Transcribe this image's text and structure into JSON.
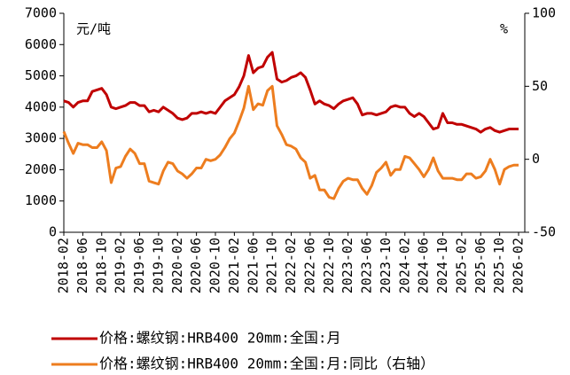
{
  "chart_data": {
    "type": "line",
    "y_label": "元/吨",
    "y2_label": "%",
    "categories": [
      "2018-02",
      null,
      null,
      null,
      "2018-06",
      null,
      null,
      null,
      "2018-10",
      null,
      null,
      null,
      "2019-02",
      null,
      null,
      null,
      "2019-06",
      null,
      null,
      null,
      "2019-10",
      null,
      null,
      null,
      "2020-02",
      null,
      null,
      null,
      "2020-06",
      null,
      null,
      null,
      "2020-10",
      null,
      null,
      null,
      "2021-02",
      null,
      null,
      null,
      "2021-06",
      null,
      null,
      null,
      "2021-10",
      null,
      null,
      null,
      "2022-02",
      null,
      null,
      null,
      "2022-06",
      null,
      null,
      null,
      "2022-10",
      null,
      null,
      null,
      "2023-02",
      null,
      null,
      null,
      "2023-06",
      null,
      null,
      null,
      "2023-10",
      null,
      null,
      null,
      "2024-02",
      null,
      null,
      null,
      "2024-06",
      null,
      null,
      null,
      "2024-10",
      null,
      null,
      null,
      "2025-02",
      null,
      null,
      null,
      "2025-06",
      null,
      null,
      null,
      "2025-10",
      null,
      null,
      null,
      "2026-02"
    ],
    "series": [
      {
        "name": "价格:螺纹钢:HRB400 20mm:全国:月",
        "color": "#c00000",
        "axis": "y",
        "values": [
          4200,
          4150,
          4000,
          4150,
          4200,
          4200,
          4500,
          4550,
          4600,
          4400,
          4000,
          3950,
          4000,
          4050,
          4150,
          4150,
          4050,
          4050,
          3850,
          3900,
          3850,
          4000,
          3900,
          3800,
          3650,
          3600,
          3650,
          3800,
          3800,
          3850,
          3800,
          3850,
          3800,
          4000,
          4200,
          4300,
          4400,
          4650,
          5000,
          5650,
          5100,
          5250,
          5300,
          5600,
          5750,
          4900,
          4800,
          4850,
          4950,
          5000,
          5100,
          4950,
          4550,
          4100,
          4200,
          4100,
          4050,
          3950,
          4100,
          4200,
          4250,
          4300,
          4100,
          3750,
          3800,
          3800,
          3750,
          3800,
          3850,
          4000,
          4050,
          4000,
          4000,
          3800,
          3700,
          3800,
          3700,
          3500,
          3300,
          3350,
          3800,
          3500,
          3500,
          3450,
          3450,
          3400,
          3350,
          3300,
          3200,
          3300,
          3350,
          3250,
          3200,
          3250,
          3300,
          3300,
          3300
        ]
      },
      {
        "name": "价格:螺纹钢:HRB400 20mm:全国:月:同比（右轴）",
        "color": "#ed7d1f",
        "axis": "y2",
        "values": [
          19,
          11,
          4,
          11,
          10,
          10,
          8,
          8,
          12,
          6,
          -16,
          -6,
          -5,
          2,
          7,
          4,
          -3,
          -3,
          -15,
          -16,
          -17,
          -8,
          -2,
          -3,
          -8,
          -10,
          -13,
          -10,
          -6,
          -6,
          0,
          -1,
          0,
          3,
          8,
          14,
          18,
          26,
          35,
          50,
          34,
          38,
          37,
          47,
          50,
          23,
          17,
          10,
          9,
          7,
          1,
          -2,
          -13,
          -11,
          -21,
          -21,
          -26,
          -27,
          -20,
          -15,
          -13,
          -14,
          -14,
          -20,
          -24,
          -18,
          -9,
          -6,
          -2,
          -11,
          -7,
          -7,
          2,
          1,
          -3,
          -7,
          -12,
          -7,
          1,
          -8,
          -13,
          -13,
          -13,
          -14,
          -14,
          -10,
          -10,
          -13,
          -12,
          -8,
          0,
          -7,
          -17,
          -7,
          -5,
          -4,
          -4
        ]
      }
    ],
    "ylim": [
      0,
      7000
    ],
    "yticks": [
      0,
      1000,
      2000,
      3000,
      4000,
      5000,
      6000,
      7000
    ],
    "y2lim": [
      -50,
      100
    ],
    "y2ticks": [
      -50,
      0,
      50,
      100
    ],
    "legend": "bottom"
  }
}
